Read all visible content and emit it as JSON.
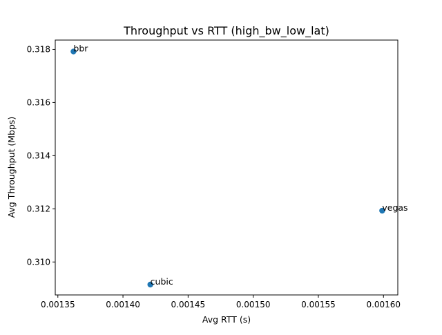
{
  "chart_data": {
    "type": "scatter",
    "title": "Throughput vs RTT (high_bw_low_lat)",
    "xlabel": "Avg RTT (s)",
    "ylabel": "Avg Throughput (Mbps)",
    "xlim": [
      0.001348,
      0.001611
    ],
    "ylim": [
      0.30876,
      0.31835
    ],
    "x_ticks": [
      0.00135,
      0.0014,
      0.00145,
      0.0015,
      0.00155,
      0.0016
    ],
    "x_tick_labels": [
      "0.00135",
      "0.00140",
      "0.00145",
      "0.00150",
      "0.00155",
      "0.00160"
    ],
    "y_ticks": [
      0.31,
      0.312,
      0.314,
      0.316,
      0.318
    ],
    "y_tick_labels": [
      "0.310",
      "0.312",
      "0.314",
      "0.316",
      "0.318"
    ],
    "grid": false,
    "marker_color": "#1f77b4",
    "points": [
      {
        "label": "bbr",
        "x": 0.001362,
        "y": 0.31792
      },
      {
        "label": "cubic",
        "x": 0.001421,
        "y": 0.30915
      },
      {
        "label": "vegas",
        "x": 0.001599,
        "y": 0.31193
      }
    ]
  }
}
